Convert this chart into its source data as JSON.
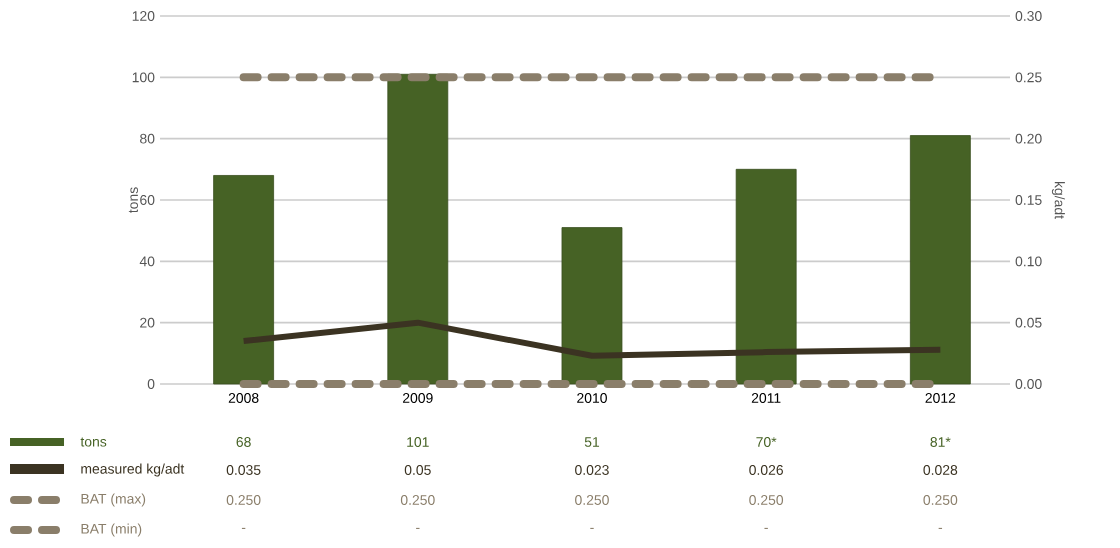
{
  "chart_data": {
    "type": "bar",
    "categories": [
      "2008",
      "2009",
      "2010",
      "2011",
      "2012"
    ],
    "series": [
      {
        "name": "tons",
        "color": "#466225",
        "values": [
          68,
          101,
          51,
          70,
          81
        ],
        "value_labels": [
          "68",
          "101",
          "51",
          "70*",
          "81*"
        ]
      },
      {
        "name": "measured kg/adt",
        "type": "line",
        "axis": "y2",
        "color": "#3b3322",
        "values": [
          0.035,
          0.05,
          0.023,
          0.026,
          0.028
        ],
        "value_labels": [
          "0.035",
          "0.05",
          "0.023",
          "0.026",
          "0.028"
        ]
      },
      {
        "name": "BAT (max)",
        "type": "line",
        "axis": "y2",
        "line_style": "dashed",
        "color": "#8a7e6a",
        "values": [
          0.25,
          0.25,
          0.25,
          0.25,
          0.25
        ],
        "value_labels": [
          "0.250",
          "0.250",
          "0.250",
          "0.250",
          "0.250"
        ]
      },
      {
        "name": "BAT (min)",
        "type": "line",
        "axis": "y2",
        "line_style": "dashed",
        "color": "#8a7e6a",
        "values": [
          0,
          0,
          0,
          0,
          0
        ],
        "value_labels": [
          "-",
          "-",
          "-",
          "-",
          "-"
        ]
      }
    ],
    "ylabel": "tons",
    "y2label": "kg/adt",
    "ylim": [
      0,
      120
    ],
    "yticks": [
      0,
      20,
      40,
      60,
      80,
      100,
      120
    ],
    "y2lim": [
      0,
      0.3
    ],
    "y2ticks": [
      {
        "value": 0,
        "label": "0.00"
      },
      {
        "value": 0.05,
        "label": "0.05"
      },
      {
        "value": 0.1,
        "label": "0.10"
      },
      {
        "value": 0.15,
        "label": "0.15"
      },
      {
        "value": 0.2,
        "label": "0.20"
      },
      {
        "value": 0.25,
        "label": "0.25"
      },
      {
        "value": 0.3,
        "label": "0.30"
      }
    ],
    "grid": "y",
    "legend": "bottom"
  }
}
